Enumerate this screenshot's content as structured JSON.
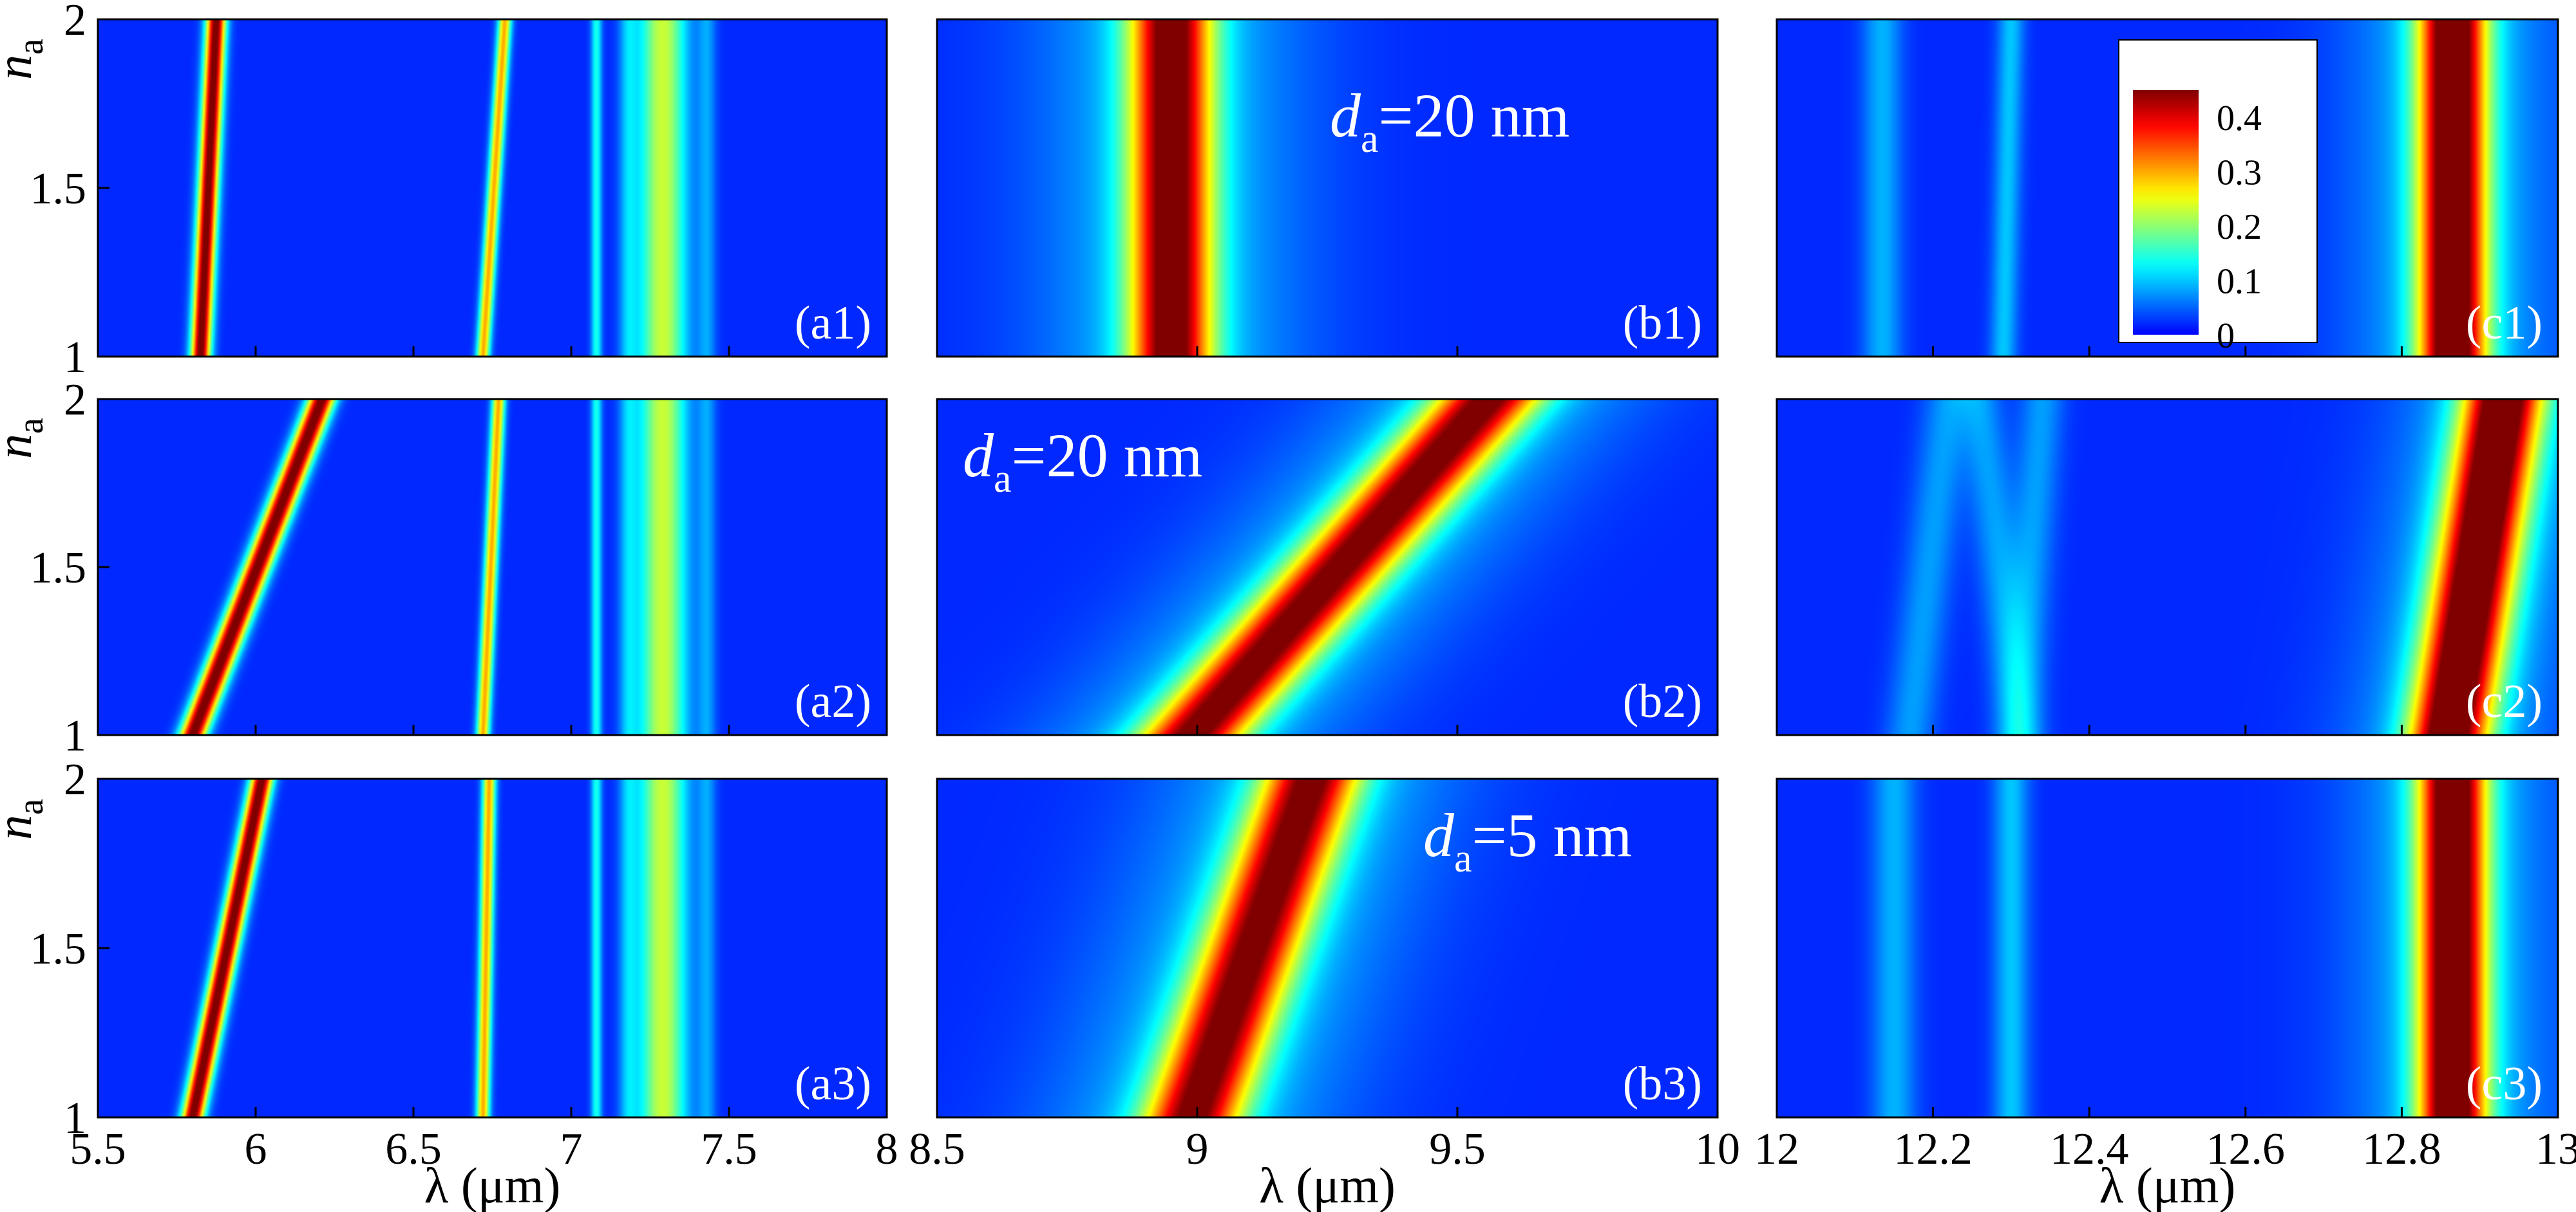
{
  "chart_data": {
    "type": "heatmap",
    "y_axis": {
      "label_main": "n",
      "label_sub": "a",
      "range": [
        1,
        2
      ],
      "ticks": [
        "1",
        "1.5",
        "2"
      ]
    },
    "x_axis_label": "λ (μm)",
    "colorbar": {
      "range": [
        0,
        0.45
      ],
      "ticks": [
        "0",
        "0.1",
        "0.2",
        "0.3",
        "0.4"
      ],
      "tick_values": [
        0,
        0.1,
        0.2,
        0.3,
        0.4
      ]
    },
    "columns": [
      {
        "xlim": [
          5.5,
          8
        ],
        "ticks": [
          "5.5",
          "6",
          "6.5",
          "7",
          "7.5",
          "8"
        ],
        "tick_values": [
          5.5,
          6,
          6.5,
          7,
          7.5,
          8
        ]
      },
      {
        "xlim": [
          8.5,
          10
        ],
        "ticks": [
          "8.5",
          "9",
          "9.5",
          "10"
        ],
        "tick_values": [
          8.5,
          9,
          9.5,
          10
        ]
      },
      {
        "xlim": [
          12,
          13
        ],
        "ticks": [
          "12",
          "12.2",
          "12.4",
          "12.6",
          "12.8",
          "13"
        ],
        "tick_values": [
          12,
          12.2,
          12.4,
          12.6,
          12.8,
          13
        ]
      }
    ],
    "panels": [
      {
        "id": "a1",
        "label": "(a1)",
        "col": 0,
        "row": 0,
        "bands": [
          {
            "x1": 5.825,
            "x2": 5.875,
            "w": 0.022,
            "amp": 0.45
          },
          {
            "x1": 6.72,
            "x2": 6.79,
            "w": 0.015,
            "amp": 0.28
          },
          {
            "x1": 7.08,
            "x2": 7.08,
            "w": 0.012,
            "amp": 0.12
          },
          {
            "x1": 7.18,
            "x2": 7.18,
            "w": 0.02,
            "amp": 0.07
          },
          {
            "x1": 7.29,
            "x2": 7.29,
            "w": 0.055,
            "amp": 0.21
          },
          {
            "x1": 7.43,
            "x2": 7.43,
            "w": 0.02,
            "amp": 0.06
          }
        ]
      },
      {
        "id": "b1",
        "label": "(b1)",
        "col": 1,
        "row": 0,
        "bands": [
          {
            "x1": 8.95,
            "x2": 8.95,
            "w": 0.055,
            "amp": 0.4
          },
          {
            "x1": 8.95,
            "x2": 8.95,
            "w": 0.18,
            "amp": 0.08
          }
        ]
      },
      {
        "id": "c1",
        "label": "(c1)",
        "col": 2,
        "row": 0,
        "bands": [
          {
            "x1": 12.135,
            "x2": 12.135,
            "w": 0.018,
            "amp": 0.07
          },
          {
            "x1": 12.29,
            "x2": 12.3,
            "w": 0.012,
            "amp": 0.08
          },
          {
            "x1": 12.865,
            "x2": 12.865,
            "w": 0.03,
            "amp": 0.45
          },
          {
            "x1": 12.865,
            "x2": 12.865,
            "w": 0.09,
            "amp": 0.08
          }
        ]
      },
      {
        "id": "a2",
        "label": "(a2)",
        "col": 0,
        "row": 1,
        "bands": [
          {
            "x1": 5.8,
            "x2": 6.21,
            "w": 0.03,
            "amp": 0.45
          },
          {
            "x1": 6.72,
            "x2": 6.77,
            "w": 0.015,
            "amp": 0.28
          },
          {
            "x1": 7.08,
            "x2": 7.08,
            "w": 0.012,
            "amp": 0.12
          },
          {
            "x1": 7.18,
            "x2": 7.18,
            "w": 0.02,
            "amp": 0.07
          },
          {
            "x1": 7.29,
            "x2": 7.29,
            "w": 0.055,
            "amp": 0.21
          },
          {
            "x1": 7.43,
            "x2": 7.43,
            "w": 0.02,
            "amp": 0.06
          }
        ]
      },
      {
        "id": "b2",
        "label": "(b2)",
        "col": 1,
        "row": 1,
        "bands": [
          {
            "x1": 8.99,
            "x2": 9.56,
            "w": 0.07,
            "amp": 0.38
          },
          {
            "x1": 8.99,
            "x2": 9.56,
            "w": 0.2,
            "amp": 0.08
          }
        ]
      },
      {
        "id": "c2",
        "label": "(c2)",
        "col": 2,
        "row": 1,
        "bands": [
          {
            "x1": 12.17,
            "x2": 12.22,
            "w": 0.022,
            "amp": 0.06
          },
          {
            "x1": 12.31,
            "x2": 12.26,
            "w": 0.02,
            "amp": 0.06
          },
          {
            "x1": 12.31,
            "x2": 12.34,
            "w": 0.02,
            "amp": 0.06
          },
          {
            "x1": 12.86,
            "x2": 12.93,
            "w": 0.035,
            "amp": 0.45
          },
          {
            "x1": 12.86,
            "x2": 12.93,
            "w": 0.09,
            "amp": 0.08
          }
        ]
      },
      {
        "id": "a3",
        "label": "(a3)",
        "col": 0,
        "row": 2,
        "bands": [
          {
            "x1": 5.8,
            "x2": 6.02,
            "w": 0.025,
            "amp": 0.45
          },
          {
            "x1": 6.72,
            "x2": 6.74,
            "w": 0.015,
            "amp": 0.28
          },
          {
            "x1": 7.08,
            "x2": 7.08,
            "w": 0.012,
            "amp": 0.12
          },
          {
            "x1": 7.18,
            "x2": 7.18,
            "w": 0.02,
            "amp": 0.07
          },
          {
            "x1": 7.29,
            "x2": 7.29,
            "w": 0.055,
            "amp": 0.21
          },
          {
            "x1": 7.43,
            "x2": 7.43,
            "w": 0.02,
            "amp": 0.06
          }
        ]
      },
      {
        "id": "b3",
        "label": "(b3)",
        "col": 1,
        "row": 2,
        "bands": [
          {
            "x1": 8.99,
            "x2": 9.22,
            "w": 0.065,
            "amp": 0.38
          },
          {
            "x1": 8.99,
            "x2": 9.22,
            "w": 0.2,
            "amp": 0.08
          }
        ]
      },
      {
        "id": "c3",
        "label": "(c3)",
        "col": 2,
        "row": 2,
        "bands": [
          {
            "x1": 12.15,
            "x2": 12.15,
            "w": 0.02,
            "amp": 0.07
          },
          {
            "x1": 12.3,
            "x2": 12.3,
            "w": 0.016,
            "amp": 0.08
          },
          {
            "x1": 12.865,
            "x2": 12.865,
            "w": 0.03,
            "amp": 0.45
          },
          {
            "x1": 12.865,
            "x2": 12.865,
            "w": 0.09,
            "amp": 0.08
          }
        ]
      }
    ],
    "annotations": [
      {
        "panel": "b1",
        "main": "d",
        "sub": "a",
        "rest": "=20 nm"
      },
      {
        "panel": "b2",
        "main": "d",
        "sub": "a",
        "rest": "=20 nm"
      },
      {
        "panel": "b3",
        "main": "d",
        "sub": "a",
        "rest": "=5 nm"
      }
    ]
  }
}
